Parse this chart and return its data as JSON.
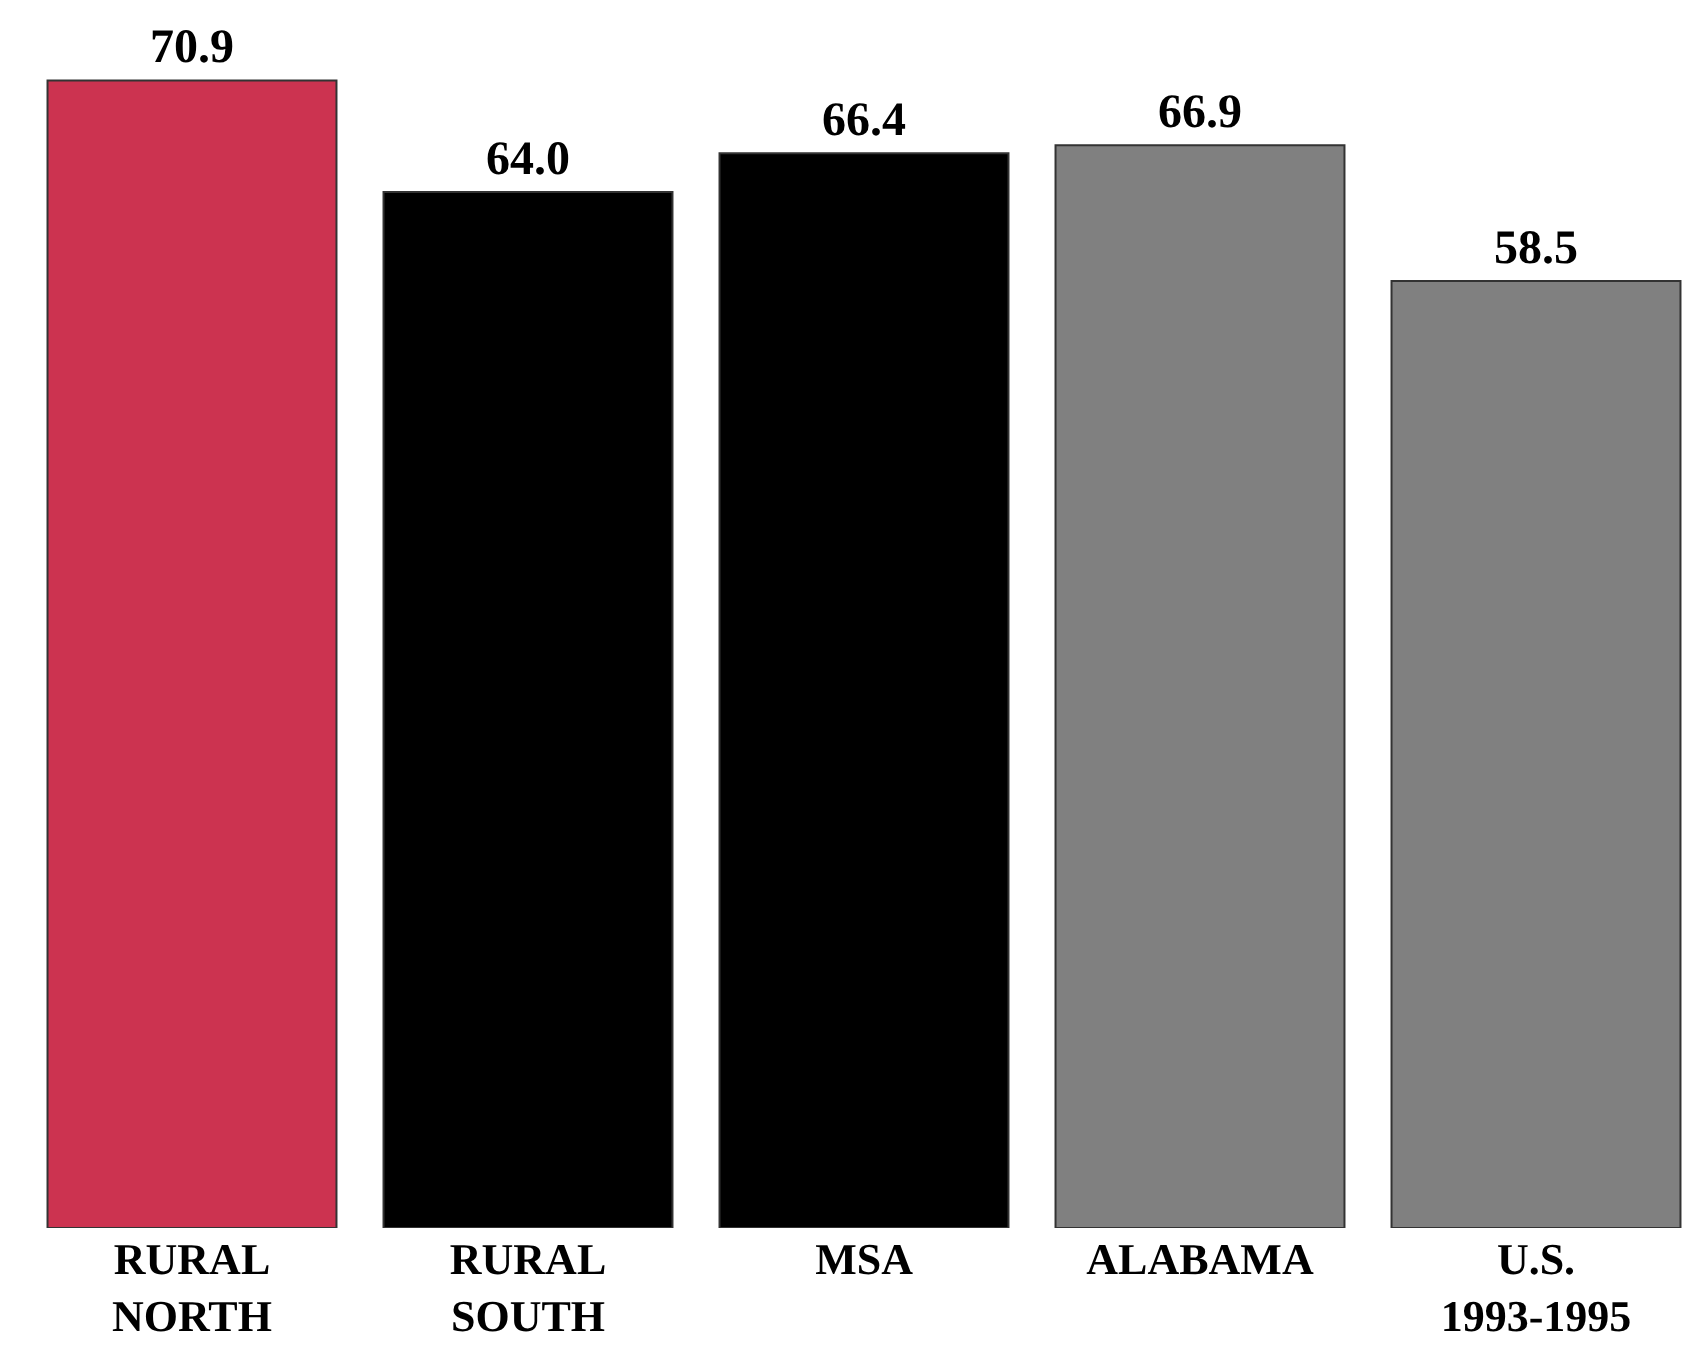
{
  "chart_data": {
    "type": "bar",
    "categories": [
      "RURAL\nNORTH",
      "RURAL\nSOUTH",
      "MSA",
      "ALABAMA",
      "U.S.\n1993-1995"
    ],
    "values": [
      70.9,
      64.0,
      66.4,
      66.9,
      58.5
    ],
    "colors": [
      "#cc3350",
      "#000000",
      "#000000",
      "#808080",
      "#808080"
    ],
    "value_labels": [
      "70.9",
      "64.0",
      "66.4",
      "66.9",
      "58.5"
    ],
    "tick_labels": "x"
  }
}
